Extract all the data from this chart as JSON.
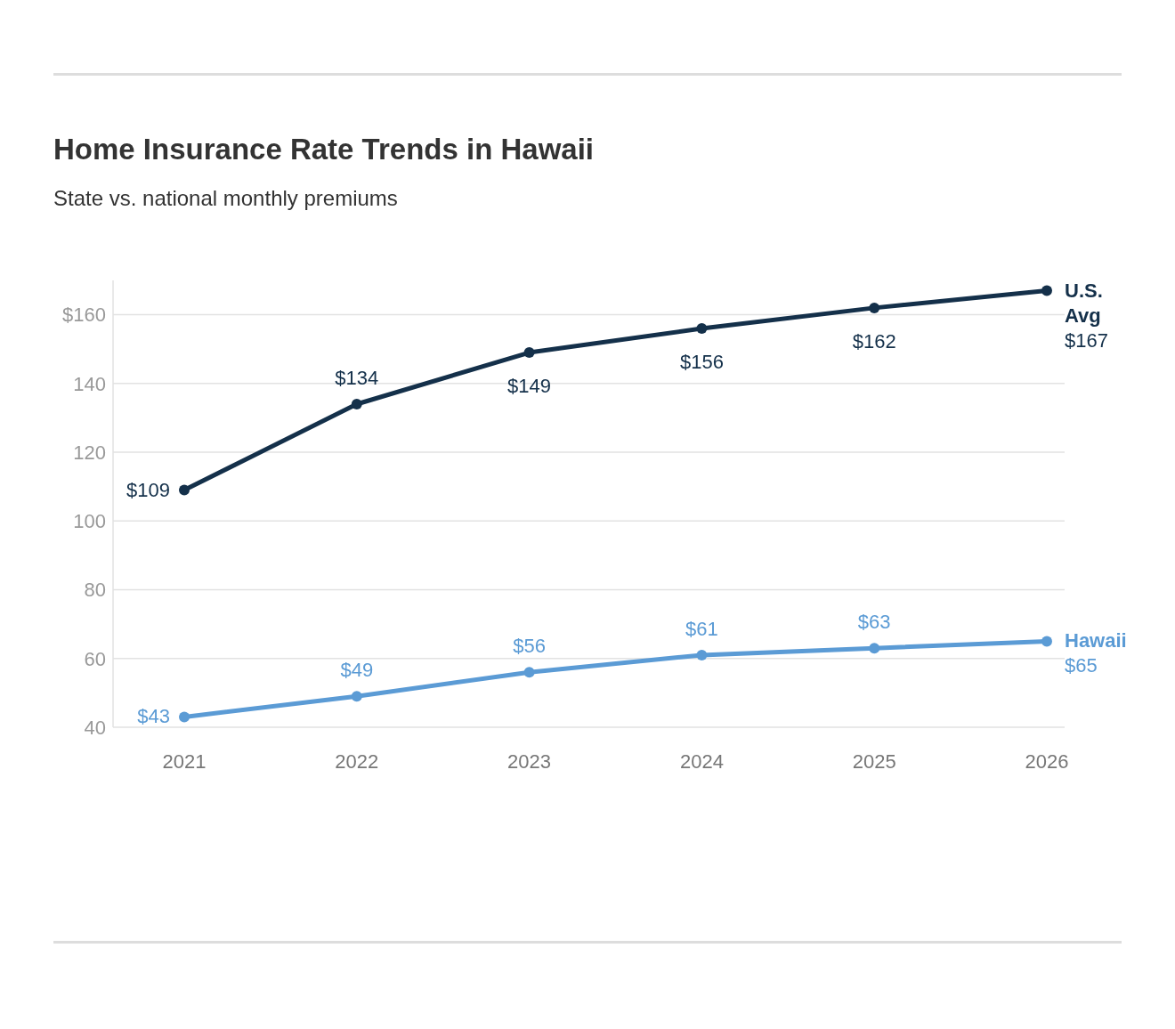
{
  "chart_data": {
    "type": "line",
    "title": "Home Insurance Rate Trends in Hawaii",
    "subtitle": "State vs. national monthly premiums",
    "categories": [
      "2021",
      "2022",
      "2023",
      "2024",
      "2025",
      "2026"
    ],
    "series": [
      {
        "name": "U.S. Avg",
        "color": "#14304a",
        "values": [
          109,
          134,
          149,
          156,
          162,
          167
        ],
        "value_labels": [
          "$109",
          "$134",
          "$149",
          "$156",
          "$162",
          "$167"
        ]
      },
      {
        "name": "Hawaii",
        "color": "#5b9bd5",
        "values": [
          43,
          49,
          56,
          61,
          63,
          65
        ],
        "value_labels": [
          "$43",
          "$49",
          "$56",
          "$61",
          "$63",
          "$65"
        ]
      }
    ],
    "ylim": [
      40,
      170
    ],
    "yticks": [
      40,
      60,
      80,
      100,
      120,
      140,
      {
        "value": 160,
        "label": "$160"
      }
    ],
    "grid": "y",
    "marker": "circle",
    "line_style": "solid"
  }
}
